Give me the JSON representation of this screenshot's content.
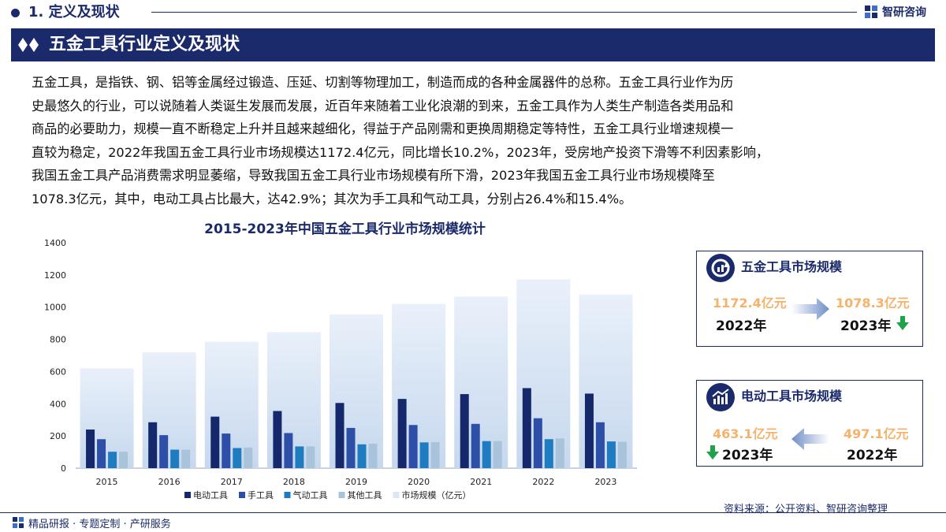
{
  "header": {
    "section_title": "1. 定义及现状",
    "logo_text": "智研咨询"
  },
  "banner": {
    "title": "五金工具行业定义及现状"
  },
  "intro": {
    "lines": [
      "五金工具，是指铁、钢、铝等金属经过锻造、压延、切割等物理加工，制造而成的各种金属器件的总称。五金工具行业作为历",
      "史最悠久的行业，可以说随着人类诞生发展而发展，近百年来随着工业化浪潮的到来，五金工具作为人类生产制造各类用品和",
      "商品的必要助力，规模一直不断稳定上升并且越来越细化，得益于产品刚需和更换周期稳定等特性，五金工具行业增速规模一",
      "直较为稳定，2022年我国五金工具行业市场规模达1172.4亿元，同比增长10.2%，2023年，受房地产投资下滑等不利因素影响，",
      "我国五金工具产品消费需求明显萎缩，导致我国五金工具行业市场规模有所下滑，2023年我国五金工具行业市场规模降至",
      "1078.3亿元，其中，电动工具占比最大，达42.9%；其次为手工具和气动工具，分别占26.4%和15.4%。"
    ]
  },
  "chart_data": {
    "type": "bar",
    "title": "2015-2023年中国五金工具行业市场规模统计",
    "categories": [
      "2015",
      "2016",
      "2017",
      "2018",
      "2019",
      "2020",
      "2021",
      "2022",
      "2023"
    ],
    "series": [
      {
        "name": "电动工具",
        "color": "#14286b",
        "values": [
          240,
          285,
          320,
          355,
          405,
          430,
          460,
          497.1,
          463.1
        ]
      },
      {
        "name": "手工具",
        "color": "#2e4fa8",
        "values": [
          180,
          205,
          215,
          218,
          250,
          268,
          275,
          310,
          285
        ]
      },
      {
        "name": "气动工具",
        "color": "#1f7cc0",
        "values": [
          102,
          115,
          125,
          135,
          148,
          160,
          168,
          180,
          166
        ]
      },
      {
        "name": "其他工具",
        "color": "#a9c4da",
        "values": [
          102,
          115,
          128,
          135,
          152,
          162,
          168,
          185,
          164
        ]
      },
      {
        "name": "市场规模（亿元）",
        "color": "#e6eef8",
        "values": [
          620,
          720,
          785,
          845,
          955,
          1020,
          1065,
          1172.4,
          1078.3
        ]
      }
    ],
    "ylim": [
      0,
      1400
    ],
    "yticks": [
      "0",
      "200",
      "400",
      "600",
      "800",
      "1000",
      "1200",
      "1400"
    ],
    "legend_position": "bottom",
    "grid": false
  },
  "card1": {
    "title": "五金工具市场规模",
    "from_value": "1172.4亿元",
    "from_year": "2022年",
    "to_value": "1078.3亿元",
    "to_year": "2023年",
    "trend_color": "#1ea34a"
  },
  "card2": {
    "title": "电动工具市场规模",
    "left_value": "463.1亿元",
    "left_year": "2023年",
    "right_value": "497.1亿元",
    "right_year": "2022年"
  },
  "source": "资料来源：公开资料、智研咨询整理",
  "footer": "精品研报 · 专题定制 · 产研服务",
  "colors": {
    "navy": "#1b2a6b",
    "value_orange": "#f6b26b",
    "down_green": "#1ea34a"
  }
}
